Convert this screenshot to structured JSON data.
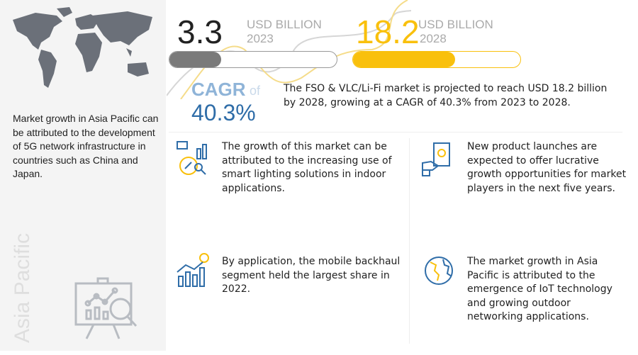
{
  "left_panel": {
    "text": "Market growth in Asia Pacific can be attributed to the development of 5G network infrastructure in countries such as China and Japan.",
    "region_label": "Asia Pacific",
    "icons": [
      "world-map",
      "presentation-analytics-icon"
    ]
  },
  "metrics": {
    "start": {
      "value": "3.3",
      "unit": "USD BILLION",
      "year": "2023",
      "bar_fill_percent": 31,
      "color": "#7a7a7a"
    },
    "end": {
      "value": "18.2",
      "unit": "USD BILLION",
      "year": "2028",
      "bar_fill_percent": 61,
      "color": "#f9c00c"
    }
  },
  "cagr": {
    "label": "CAGR",
    "of": "of",
    "value": "40.3%",
    "description": "The FSO & VLC/Li-Fi market is projected to reach USD 18.2 billion by 2028, growing at a CAGR of 40.3% from 2023 to 2028.",
    "label_color": "#8fb4d8",
    "value_color": "#2f6da8"
  },
  "insights": [
    {
      "icon": "smart-lighting-analytics-icon",
      "text": "The growth of this market can be attributed to the increasing use of smart lighting solutions in indoor applications."
    },
    {
      "icon": "product-launch-icon",
      "text": "New product launches are expected to offer lucrative growth opportunities for market players in the next five years."
    },
    {
      "icon": "growth-chart-dollar-icon",
      "text": "By application, the mobile backhaul segment held the largest share in 2022."
    },
    {
      "icon": "globe-icon",
      "text": "The market growth in Asia Pacific is attributed to the emergence of IoT technology and growing outdoor networking applications."
    }
  ]
}
